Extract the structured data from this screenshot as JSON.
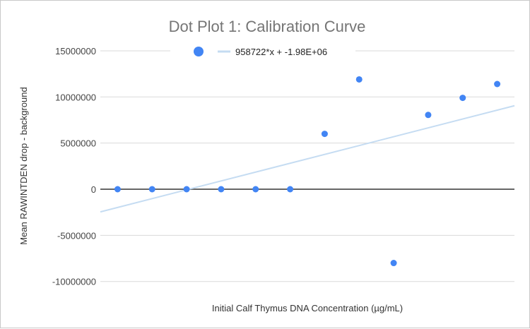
{
  "chart_data": {
    "type": "scatter",
    "title": "Dot Plot 1: Calibration Curve",
    "xlabel": "Initial Calf Thymus DNA Concentration (µg/mL)",
    "ylabel": "Mean RAWINTDEN drop - background",
    "xlim": [
      -0.5,
      11.5
    ],
    "ylim": [
      -12000000,
      17000000
    ],
    "yticks": [
      15000000,
      10000000,
      5000000,
      0,
      -5000000,
      -10000000
    ],
    "ytick_labels": [
      "15000000",
      "10000000",
      "5000000",
      "0",
      "-5000000",
      "-10000000"
    ],
    "grid": true,
    "legend_position": "top",
    "series": [
      {
        "name": "Mean RAWINTDEN drop - background",
        "color": "#4285f4",
        "x": [
          0,
          1,
          2,
          3,
          4,
          5,
          6,
          7,
          8,
          9,
          10,
          11
        ],
        "y": [
          0,
          0,
          0,
          0,
          0,
          0,
          6000000,
          11900000,
          -8000000,
          8050000,
          9900000,
          11400000
        ]
      }
    ],
    "trendline": {
      "label": "958722*x + -1.98E+06",
      "slope": 958722,
      "intercept": -1980000,
      "color": "#c5dcf2"
    }
  }
}
